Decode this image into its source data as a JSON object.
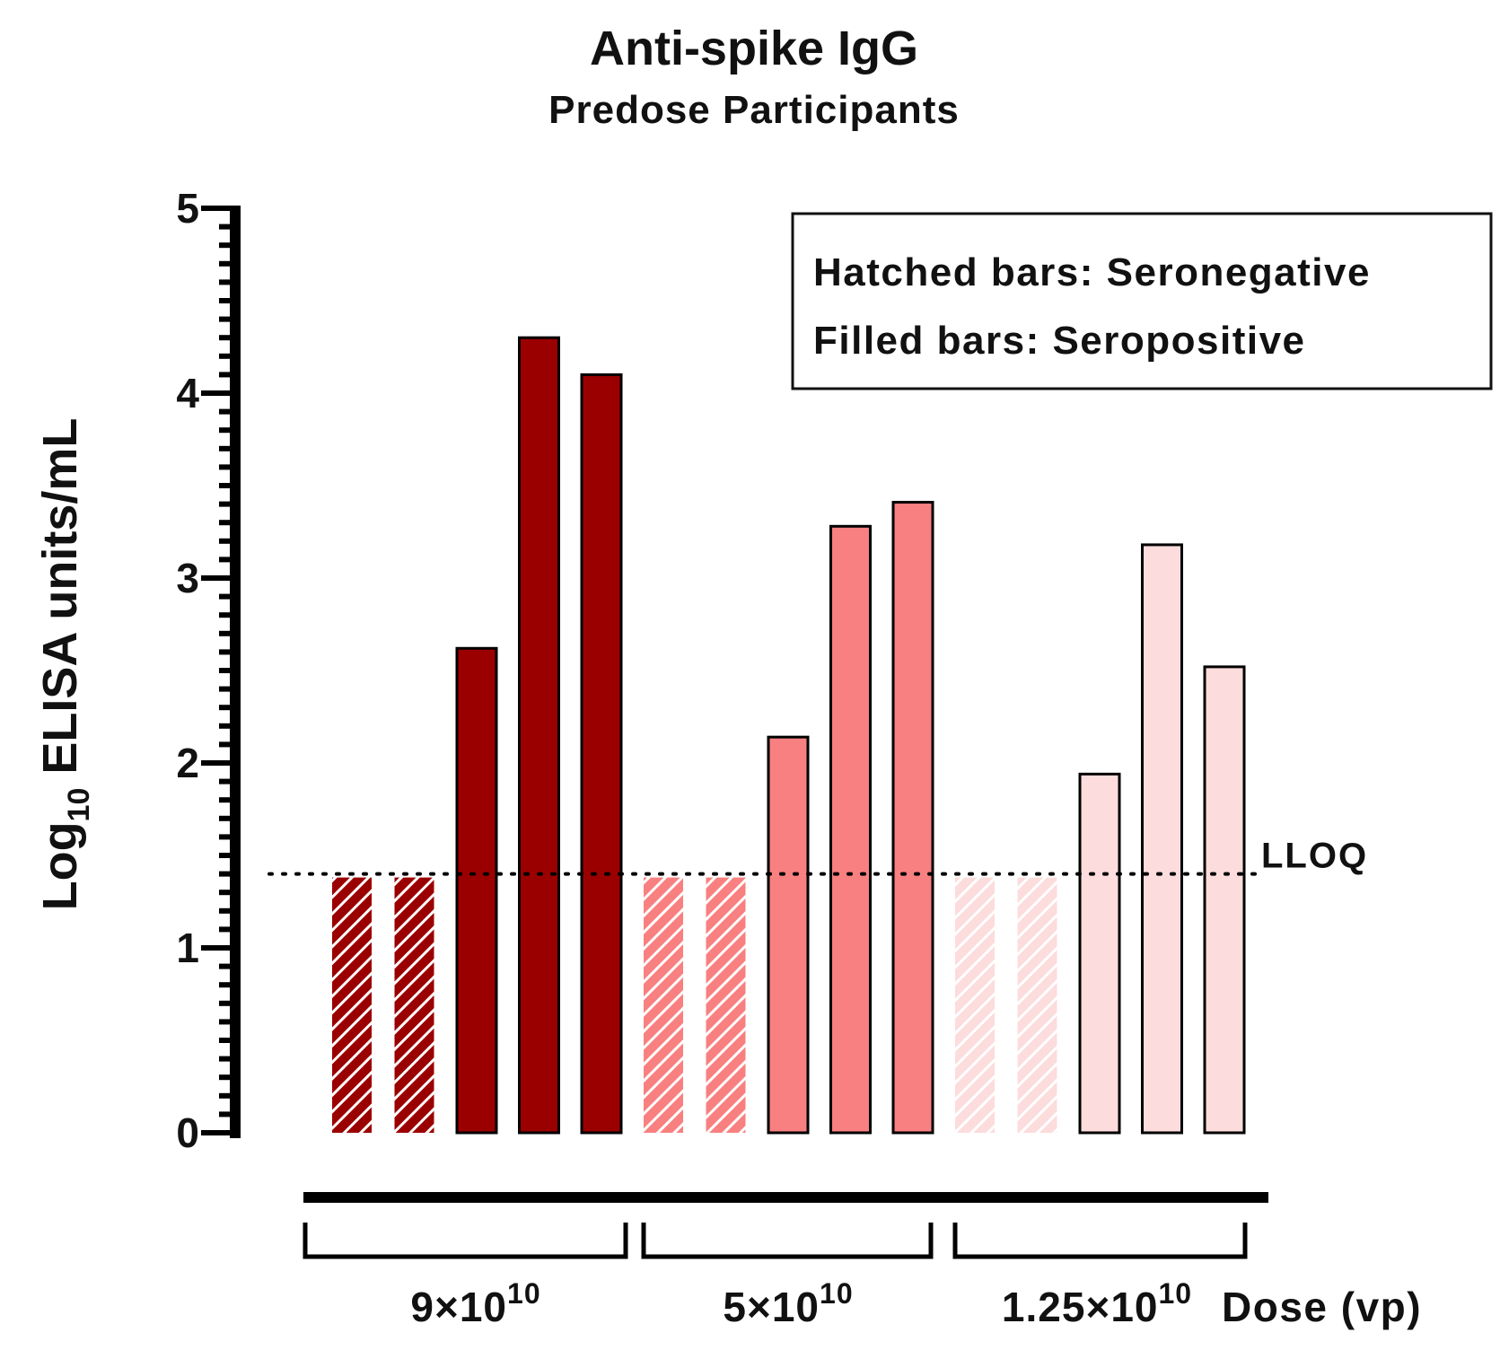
{
  "chart_data": {
    "type": "bar",
    "title": "Anti-spike IgG",
    "subtitle": "Predose Participants",
    "ylabel_main": "Log",
    "ylabel_sub": "10",
    "ylabel_rest": " ELISA units/mL",
    "ylim": [
      0,
      5
    ],
    "yticks": [
      "0",
      "1",
      "2",
      "3",
      "4",
      "5"
    ],
    "reference_line": {
      "label": "LLOQ",
      "value": 1.4,
      "style": "dotted"
    },
    "legend": {
      "placement": "top-right",
      "lines": [
        "Hatched bars: Seronegative",
        "Filled bars: Seropositive"
      ]
    },
    "xaxis_title": "Dose (vp)",
    "groups": [
      {
        "label_base": "9×10",
        "label_exp": "10",
        "color": "#9b0000",
        "bars": [
          {
            "value": 1.4,
            "pattern": "hatched"
          },
          {
            "value": 1.4,
            "pattern": "hatched"
          },
          {
            "value": 2.62,
            "pattern": "filled"
          },
          {
            "value": 4.3,
            "pattern": "filled"
          },
          {
            "value": 4.1,
            "pattern": "filled"
          }
        ]
      },
      {
        "label_base": "5×10",
        "label_exp": "10",
        "color": "#f98080",
        "bars": [
          {
            "value": 1.4,
            "pattern": "hatched"
          },
          {
            "value": 1.4,
            "pattern": "hatched"
          },
          {
            "value": 2.14,
            "pattern": "filled"
          },
          {
            "value": 3.28,
            "pattern": "filled"
          },
          {
            "value": 3.41,
            "pattern": "filled"
          }
        ]
      },
      {
        "label_base": "1.25×10",
        "label_exp": "10",
        "color": "#fcdcdc",
        "bars": [
          {
            "value": 1.4,
            "pattern": "hatched"
          },
          {
            "value": 1.4,
            "pattern": "hatched"
          },
          {
            "value": 1.94,
            "pattern": "filled"
          },
          {
            "value": 3.18,
            "pattern": "filled"
          },
          {
            "value": 2.52,
            "pattern": "filled"
          }
        ]
      }
    ]
  }
}
